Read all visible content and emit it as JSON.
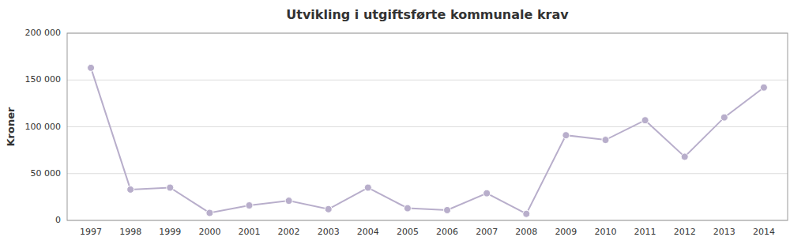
{
  "chart_data": {
    "type": "line",
    "title": "Utvikling i utgiftsførte kommunale krav",
    "ylabel": "Kroner",
    "x": [
      1997,
      1998,
      1999,
      2000,
      2001,
      2002,
      2003,
      2004,
      2005,
      2006,
      2007,
      2008,
      2009,
      2010,
      2011,
      2012,
      2013,
      2014
    ],
    "values": [
      163000,
      33000,
      35000,
      8000,
      16000,
      21000,
      12000,
      35000,
      13000,
      11000,
      29000,
      7000,
      91000,
      86000,
      107000,
      68000,
      110000,
      142000
    ],
    "color": "#B8AECB",
    "marker": "circle",
    "xlim": [
      1996.4,
      2014.6
    ],
    "xticks": [
      1997,
      1998,
      1999,
      2000,
      2001,
      2002,
      2003,
      2004,
      2005,
      2006,
      2007,
      2008,
      2009,
      2010,
      2011,
      2012,
      2013,
      2014
    ],
    "ylim": [
      0,
      200000
    ],
    "yticks": [
      0,
      {
        "value": 50000,
        "label": "50 000"
      },
      {
        "value": 100000,
        "label": "100 000"
      },
      {
        "value": 150000,
        "label": "150 000"
      },
      {
        "value": 200000,
        "label": "200 000"
      }
    ],
    "grid": true
  }
}
